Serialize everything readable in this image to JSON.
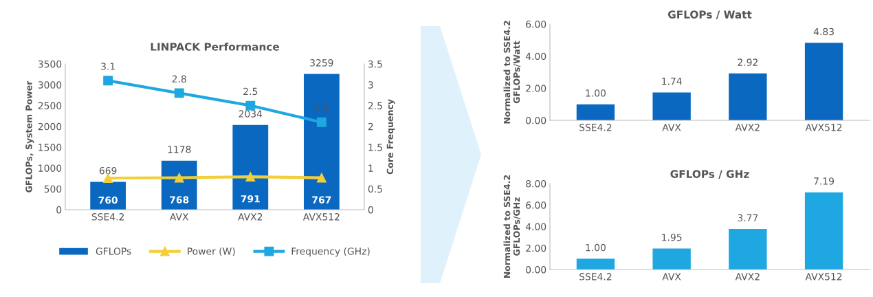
{
  "chart_data": [
    {
      "type": "bar",
      "title": "LINPACK Performance",
      "categories": [
        "SSE4.2",
        "AVX",
        "AVX2",
        "AVX512"
      ],
      "ylabel": "GFLOPs, System Power",
      "y2label": "Core Frequency",
      "ylim": [
        0,
        3500
      ],
      "yticks": [
        0,
        500,
        1000,
        1500,
        2000,
        2500,
        3000,
        3500
      ],
      "y2lim": [
        0,
        3.5
      ],
      "y2ticks": [
        0,
        0.5,
        1,
        1.5,
        2,
        2.5,
        3,
        3.5
      ],
      "data_labels": true,
      "legend": "bottom",
      "grid": false,
      "series": [
        {
          "name": "GFLOPs",
          "type": "bar",
          "color": "#0a68c0",
          "values": [
            669,
            1178,
            2034,
            3259
          ]
        },
        {
          "name": "Power (W)",
          "type": "line",
          "color": "#f2cf3a",
          "marker": "triangle",
          "values": [
            760,
            768,
            791,
            767
          ]
        },
        {
          "name": "Frequency (GHz)",
          "type": "line",
          "color": "#1ea7e1",
          "marker": "square",
          "axis": "y2",
          "values": [
            3.1,
            2.8,
            2.5,
            2.1
          ]
        }
      ]
    },
    {
      "type": "bar",
      "title": "GFLOPs / Watt",
      "categories": [
        "SSE4.2",
        "AVX",
        "AVX2",
        "AVX512"
      ],
      "ylabel": "Normalized to SSE4.2\nGFLOPs/Watt",
      "values": [
        1.0,
        1.74,
        2.92,
        4.83
      ],
      "value_labels": [
        "1.00",
        "1.74",
        "2.92",
        "4.83"
      ],
      "color": "#0a68c0",
      "ylim": [
        0,
        6
      ],
      "yticks": [
        {
          "value": 0,
          "label": "0.00"
        },
        {
          "value": 2,
          "label": "2.00"
        },
        {
          "value": 4,
          "label": "4.00"
        },
        {
          "value": 6,
          "label": "6.00"
        }
      ],
      "grid": false
    },
    {
      "type": "bar",
      "title": "GFLOPs / GHz",
      "categories": [
        "SSE4.2",
        "AVX",
        "AVX2",
        "AVX512"
      ],
      "ylabel": "Normalized to SSE4.2\nGFLOPs/GHz",
      "values": [
        1.0,
        1.95,
        3.77,
        7.19
      ],
      "value_labels": [
        "1.00",
        "1.95",
        "3.77",
        "7.19"
      ],
      "color": "#1ea7e1",
      "ylim": [
        0,
        8
      ],
      "yticks": [
        {
          "value": 0,
          "label": "0.00"
        },
        {
          "value": 2,
          "label": "2.00"
        },
        {
          "value": 4,
          "label": "4.00"
        },
        {
          "value": 6,
          "label": "6.00"
        },
        {
          "value": 8,
          "label": "8.00"
        }
      ],
      "grid": false
    }
  ]
}
